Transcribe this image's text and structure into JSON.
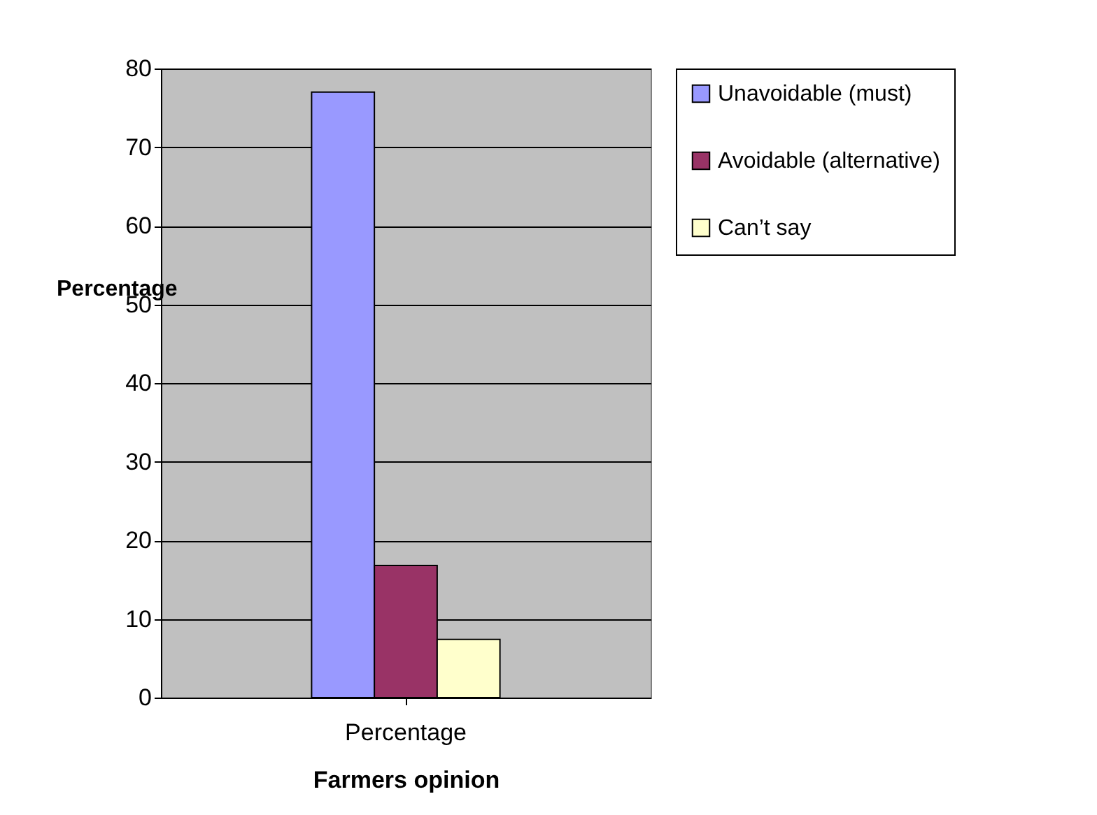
{
  "chart_data": {
    "type": "bar",
    "xlabel": "Farmers opinion",
    "ylabel": "Percentage",
    "categories": [
      "Percentage"
    ],
    "series": [
      {
        "name": "Unavoidable (must)",
        "color": "#9999ff",
        "values": [
          77
        ]
      },
      {
        "name": "Avoidable (alternative)",
        "color": "#993366",
        "values": [
          16.8
        ]
      },
      {
        "name": "Can’t say",
        "color": "#ffffcc",
        "values": [
          7.4
        ]
      }
    ],
    "ylim": [
      0,
      80
    ],
    "yticks": [
      0,
      10,
      20,
      30,
      40,
      50,
      60,
      70,
      80
    ],
    "grid": "y",
    "legend": "right"
  }
}
